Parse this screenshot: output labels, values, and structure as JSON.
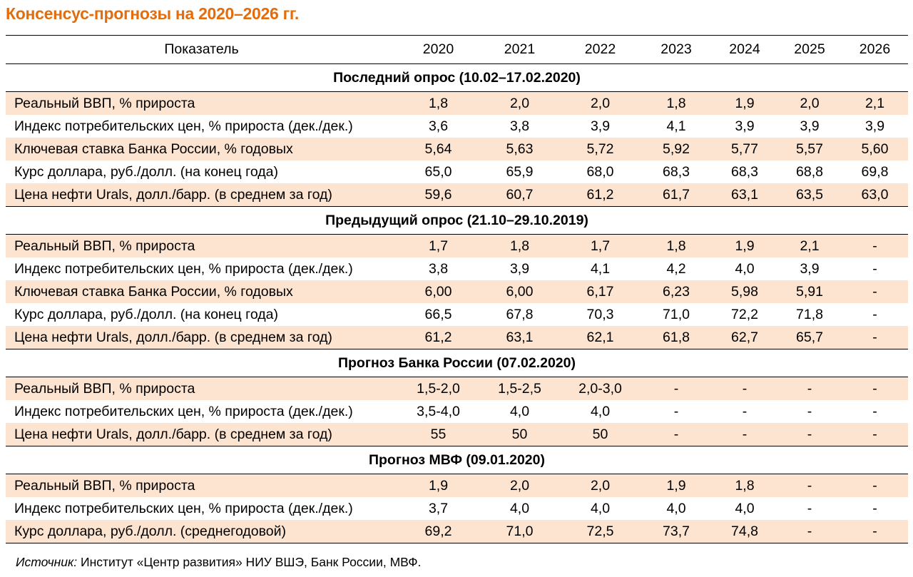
{
  "title": "Консенсус-прогнозы на 2020–2026 гг.",
  "header": [
    "Показатель",
    "2020",
    "2021",
    "2022",
    "2023",
    "2024",
    "2025",
    "2026"
  ],
  "sections": [
    {
      "title": "Последний опрос (10.02–17.02.2020)",
      "rows": [
        [
          "Реальный ВВП, % прироста",
          "1,8",
          "2,0",
          "2,0",
          "1,8",
          "1,9",
          "2,0",
          "2,1"
        ],
        [
          "Индекс потребительских цен, % прироста (дек./дек.)",
          "3,6",
          "3,8",
          "3,9",
          "4,1",
          "3,9",
          "3,9",
          "3,9"
        ],
        [
          "Ключевая ставка Банка России, % годовых",
          "5,64",
          "5,63",
          "5,72",
          "5,92",
          "5,77",
          "5,57",
          "5,60"
        ],
        [
          "Курс доллара, руб./долл. (на конец года)",
          "65,0",
          "65,9",
          "68,0",
          "68,3",
          "68,3",
          "68,8",
          "69,8"
        ],
        [
          "Цена нефти Urals, долл./барр. (в среднем за год)",
          "59,6",
          "60,7",
          "61,2",
          "61,7",
          "63,1",
          "63,5",
          "63,0"
        ]
      ]
    },
    {
      "title": "Предыдущий опрос (21.10–29.10.2019)",
      "rows": [
        [
          "Реальный ВВП, % прироста",
          "1,7",
          "1,8",
          "1,7",
          "1,8",
          "1,9",
          "2,1",
          "-"
        ],
        [
          "Индекс потребительских цен, % прироста (дек./дек.)",
          "3,8",
          "3,9",
          "4,1",
          "4,2",
          "4,0",
          "3,9",
          "-"
        ],
        [
          "Ключевая ставка Банка России, % годовых",
          "6,00",
          "6,00",
          "6,17",
          "6,23",
          "5,98",
          "5,91",
          "-"
        ],
        [
          "Курс доллара, руб./долл. (на конец года)",
          "66,5",
          "67,8",
          "70,3",
          "71,0",
          "72,2",
          "71,8",
          "-"
        ],
        [
          "Цена нефти Urals, долл./барр. (в среднем за год)",
          "61,2",
          "63,1",
          "62,1",
          "61,8",
          "62,7",
          "65,7",
          "-"
        ]
      ]
    },
    {
      "title": "Прогноз Банка России (07.02.2020)",
      "rows": [
        [
          "Реальный ВВП, % прироста",
          "1,5-2,0",
          "1,5-2,5",
          "2,0-3,0",
          "-",
          "-",
          "-",
          "-"
        ],
        [
          "Индекс потребительских цен, % прироста (дек./дек.)",
          "3,5-4,0",
          "4,0",
          "4,0",
          "-",
          "-",
          "-",
          "-"
        ],
        [
          "Цена нефти Urals, долл./барр. (в среднем за год)",
          "55",
          "50",
          "50",
          "-",
          "-",
          "-",
          "-"
        ]
      ]
    },
    {
      "title": "Прогноз МВФ (09.01.2020)",
      "rows": [
        [
          "Реальный ВВП, % прироста",
          "1,9",
          "2,0",
          "2,0",
          "1,9",
          "1,8",
          "-",
          "-"
        ],
        [
          "Индекс потребительских цен, % прироста (дек./дек.)",
          "3,7",
          "4,0",
          "4,0",
          "4,0",
          "4,0",
          "-",
          "-"
        ],
        [
          "Курс доллара, руб./долл. (среднегодовой)",
          "69,2",
          "71,0",
          "72,5",
          "73,7",
          "74,8",
          "-",
          "-"
        ]
      ]
    }
  ],
  "source": {
    "label": "Источник:",
    "text": " Институт «Центр развития» НИУ ВШЭ, Банк России, МВФ."
  },
  "colors": {
    "accent": "#e46c0a",
    "row_shade": "#fce4d0"
  }
}
